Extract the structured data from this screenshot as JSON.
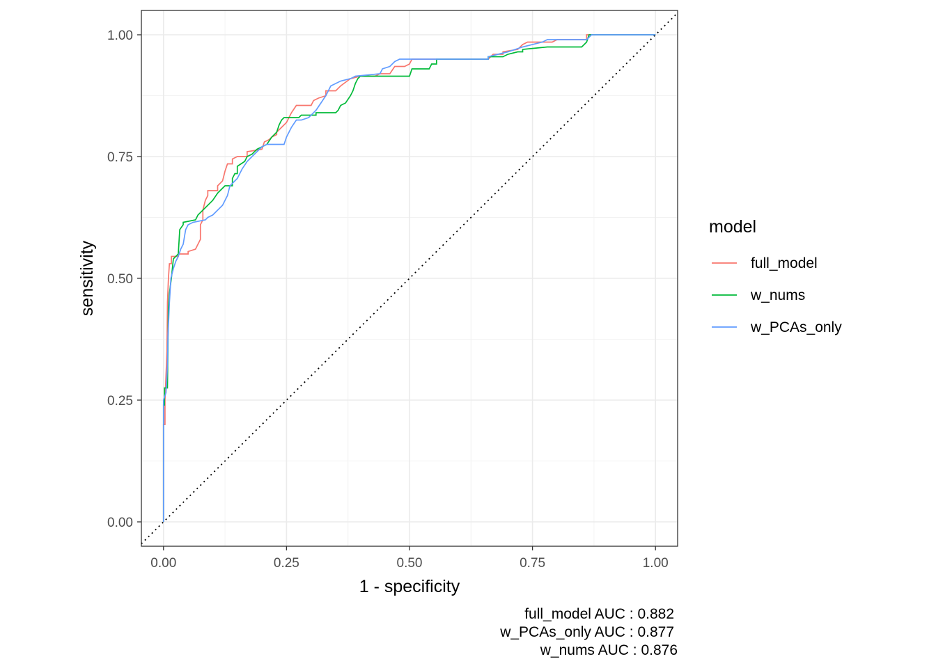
{
  "chart_data": {
    "type": "line",
    "xlabel": "1 - specificity",
    "ylabel": "sensitivity",
    "xlim": [
      -0.045,
      1.045
    ],
    "ylim": [
      -0.05,
      1.05
    ],
    "x_ticks": [
      0,
      0.25,
      0.5,
      0.75,
      1
    ],
    "x_tick_labels": [
      "0.00",
      "0.25",
      "0.50",
      "0.75",
      "1.00"
    ],
    "y_ticks": [
      0,
      0.25,
      0.5,
      0.75,
      1
    ],
    "y_tick_labels": [
      "0.00",
      "0.25",
      "0.50",
      "0.75",
      "1.00"
    ],
    "grid": true,
    "legend_position": "right",
    "legend_title": "model",
    "reference_line": {
      "style": "dotted",
      "from": [
        -0.045,
        -0.045
      ],
      "to": [
        1.045,
        1.045
      ]
    },
    "series": [
      {
        "name": "full_model",
        "color": "#F8766D",
        "points": [
          [
            0,
            0
          ],
          [
            0,
            0.2
          ],
          [
            0.003,
            0.2
          ],
          [
            0.003,
            0.25
          ],
          [
            0.005,
            0.3
          ],
          [
            0.007,
            0.35
          ],
          [
            0.008,
            0.45
          ],
          [
            0.01,
            0.5
          ],
          [
            0.012,
            0.53
          ],
          [
            0.016,
            0.53
          ],
          [
            0.016,
            0.545
          ],
          [
            0.03,
            0.545
          ],
          [
            0.03,
            0.55
          ],
          [
            0.05,
            0.55
          ],
          [
            0.05,
            0.555
          ],
          [
            0.065,
            0.56
          ],
          [
            0.07,
            0.57
          ],
          [
            0.075,
            0.58
          ],
          [
            0.075,
            0.61
          ],
          [
            0.08,
            0.62
          ],
          [
            0.08,
            0.64
          ],
          [
            0.085,
            0.66
          ],
          [
            0.09,
            0.67
          ],
          [
            0.09,
            0.68
          ],
          [
            0.11,
            0.68
          ],
          [
            0.11,
            0.69
          ],
          [
            0.12,
            0.7
          ],
          [
            0.125,
            0.72
          ],
          [
            0.13,
            0.735
          ],
          [
            0.14,
            0.735
          ],
          [
            0.14,
            0.745
          ],
          [
            0.15,
            0.75
          ],
          [
            0.17,
            0.75
          ],
          [
            0.17,
            0.76
          ],
          [
            0.2,
            0.765
          ],
          [
            0.205,
            0.78
          ],
          [
            0.215,
            0.785
          ],
          [
            0.22,
            0.79
          ],
          [
            0.23,
            0.795
          ],
          [
            0.23,
            0.8
          ],
          [
            0.25,
            0.82
          ],
          [
            0.26,
            0.84
          ],
          [
            0.27,
            0.855
          ],
          [
            0.3,
            0.855
          ],
          [
            0.305,
            0.865
          ],
          [
            0.315,
            0.87
          ],
          [
            0.33,
            0.875
          ],
          [
            0.33,
            0.885
          ],
          [
            0.35,
            0.885
          ],
          [
            0.36,
            0.895
          ],
          [
            0.38,
            0.91
          ],
          [
            0.4,
            0.915
          ],
          [
            0.43,
            0.915
          ],
          [
            0.44,
            0.92
          ],
          [
            0.46,
            0.92
          ],
          [
            0.47,
            0.935
          ],
          [
            0.49,
            0.935
          ],
          [
            0.5,
            0.94
          ],
          [
            0.505,
            0.95
          ],
          [
            0.66,
            0.95
          ],
          [
            0.67,
            0.96
          ],
          [
            0.69,
            0.96
          ],
          [
            0.69,
            0.965
          ],
          [
            0.72,
            0.97
          ],
          [
            0.73,
            0.98
          ],
          [
            0.74,
            0.985
          ],
          [
            0.79,
            0.985
          ],
          [
            0.8,
            0.99
          ],
          [
            0.86,
            0.99
          ],
          [
            0.86,
            1
          ],
          [
            1,
            1
          ]
        ]
      },
      {
        "name": "w_nums",
        "color": "#00BA38",
        "points": [
          [
            0,
            0
          ],
          [
            0,
            0.24
          ],
          [
            0.002,
            0.24
          ],
          [
            0.002,
            0.275
          ],
          [
            0.008,
            0.275
          ],
          [
            0.01,
            0.44
          ],
          [
            0.012,
            0.47
          ],
          [
            0.016,
            0.5
          ],
          [
            0.018,
            0.52
          ],
          [
            0.02,
            0.54
          ],
          [
            0.03,
            0.55
          ],
          [
            0.033,
            0.6
          ],
          [
            0.04,
            0.61
          ],
          [
            0.04,
            0.615
          ],
          [
            0.065,
            0.62
          ],
          [
            0.07,
            0.63
          ],
          [
            0.08,
            0.64
          ],
          [
            0.09,
            0.65
          ],
          [
            0.1,
            0.66
          ],
          [
            0.11,
            0.675
          ],
          [
            0.115,
            0.68
          ],
          [
            0.125,
            0.69
          ],
          [
            0.14,
            0.69
          ],
          [
            0.14,
            0.705
          ],
          [
            0.145,
            0.715
          ],
          [
            0.15,
            0.715
          ],
          [
            0.15,
            0.73
          ],
          [
            0.165,
            0.74
          ],
          [
            0.17,
            0.75
          ],
          [
            0.18,
            0.755
          ],
          [
            0.19,
            0.765
          ],
          [
            0.2,
            0.77
          ],
          [
            0.21,
            0.775
          ],
          [
            0.22,
            0.79
          ],
          [
            0.23,
            0.8
          ],
          [
            0.235,
            0.815
          ],
          [
            0.24,
            0.825
          ],
          [
            0.245,
            0.83
          ],
          [
            0.275,
            0.83
          ],
          [
            0.28,
            0.835
          ],
          [
            0.31,
            0.835
          ],
          [
            0.31,
            0.84
          ],
          [
            0.35,
            0.84
          ],
          [
            0.355,
            0.845
          ],
          [
            0.36,
            0.855
          ],
          [
            0.37,
            0.86
          ],
          [
            0.38,
            0.875
          ],
          [
            0.385,
            0.885
          ],
          [
            0.39,
            0.9
          ],
          [
            0.395,
            0.91
          ],
          [
            0.4,
            0.915
          ],
          [
            0.5,
            0.915
          ],
          [
            0.505,
            0.93
          ],
          [
            0.54,
            0.93
          ],
          [
            0.545,
            0.94
          ],
          [
            0.555,
            0.94
          ],
          [
            0.555,
            0.95
          ],
          [
            0.66,
            0.95
          ],
          [
            0.66,
            0.955
          ],
          [
            0.69,
            0.955
          ],
          [
            0.7,
            0.96
          ],
          [
            0.72,
            0.965
          ],
          [
            0.73,
            0.965
          ],
          [
            0.73,
            0.97
          ],
          [
            0.78,
            0.975
          ],
          [
            0.85,
            0.975
          ],
          [
            0.86,
            0.985
          ],
          [
            0.865,
            1
          ],
          [
            1,
            1
          ]
        ]
      },
      {
        "name": "w_PCAs_only",
        "color": "#619CFF",
        "points": [
          [
            0,
            0
          ],
          [
            0,
            0.25
          ],
          [
            0.005,
            0.265
          ],
          [
            0.007,
            0.3
          ],
          [
            0.008,
            0.32
          ],
          [
            0.009,
            0.38
          ],
          [
            0.012,
            0.45
          ],
          [
            0.015,
            0.5
          ],
          [
            0.02,
            0.52
          ],
          [
            0.025,
            0.535
          ],
          [
            0.03,
            0.545
          ],
          [
            0.035,
            0.56
          ],
          [
            0.04,
            0.57
          ],
          [
            0.045,
            0.6
          ],
          [
            0.05,
            0.61
          ],
          [
            0.06,
            0.615
          ],
          [
            0.085,
            0.62
          ],
          [
            0.09,
            0.625
          ],
          [
            0.1,
            0.63
          ],
          [
            0.11,
            0.64
          ],
          [
            0.12,
            0.65
          ],
          [
            0.13,
            0.67
          ],
          [
            0.135,
            0.69
          ],
          [
            0.145,
            0.7
          ],
          [
            0.15,
            0.705
          ],
          [
            0.155,
            0.715
          ],
          [
            0.16,
            0.725
          ],
          [
            0.17,
            0.74
          ],
          [
            0.18,
            0.75
          ],
          [
            0.19,
            0.76
          ],
          [
            0.2,
            0.77
          ],
          [
            0.21,
            0.775
          ],
          [
            0.245,
            0.775
          ],
          [
            0.25,
            0.79
          ],
          [
            0.26,
            0.81
          ],
          [
            0.27,
            0.825
          ],
          [
            0.28,
            0.825
          ],
          [
            0.295,
            0.83
          ],
          [
            0.31,
            0.845
          ],
          [
            0.32,
            0.86
          ],
          [
            0.33,
            0.875
          ],
          [
            0.34,
            0.895
          ],
          [
            0.35,
            0.9
          ],
          [
            0.36,
            0.905
          ],
          [
            0.38,
            0.91
          ],
          [
            0.39,
            0.915
          ],
          [
            0.44,
            0.92
          ],
          [
            0.445,
            0.93
          ],
          [
            0.46,
            0.935
          ],
          [
            0.47,
            0.945
          ],
          [
            0.48,
            0.95
          ],
          [
            0.66,
            0.95
          ],
          [
            0.66,
            0.955
          ],
          [
            0.68,
            0.96
          ],
          [
            0.7,
            0.965
          ],
          [
            0.73,
            0.975
          ],
          [
            0.77,
            0.985
          ],
          [
            0.78,
            0.99
          ],
          [
            0.86,
            0.99
          ],
          [
            0.87,
            1
          ],
          [
            1,
            1
          ]
        ]
      }
    ],
    "annotations": [
      "full_model AUC : 0.882",
      "w_PCAs_only AUC : 0.877",
      "w_nums AUC : 0.876"
    ]
  }
}
